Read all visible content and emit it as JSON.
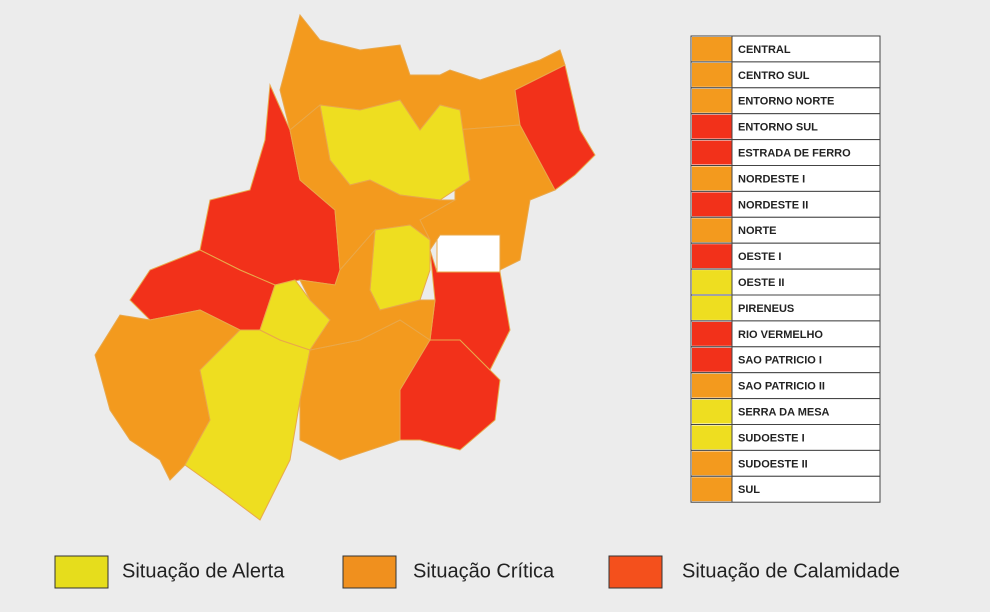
{
  "regions": [
    {
      "name": "CENTRAL",
      "color": "#f39a1e"
    },
    {
      "name": "CENTRO SUL",
      "color": "#f39a1e"
    },
    {
      "name": "ENTORNO NORTE",
      "color": "#f39a1e"
    },
    {
      "name": "ENTORNO SUL",
      "color": "#f2311a"
    },
    {
      "name": "ESTRADA DE FERRO",
      "color": "#f2311a"
    },
    {
      "name": "NORDESTE I",
      "color": "#f39a1e"
    },
    {
      "name": "NORDESTE II",
      "color": "#f2311a"
    },
    {
      "name": "NORTE",
      "color": "#f39a1e"
    },
    {
      "name": "OESTE I",
      "color": "#f2311a"
    },
    {
      "name": "OESTE II",
      "color": "#eede20"
    },
    {
      "name": "PIRENEUS",
      "color": "#eede20"
    },
    {
      "name": "RIO VERMELHO",
      "color": "#f2311a"
    },
    {
      "name": "SAO PATRICIO I",
      "color": "#f2311a"
    },
    {
      "name": "SAO PATRICIO II",
      "color": "#f39a1e"
    },
    {
      "name": "SERRA DA MESA",
      "color": "#eede20"
    },
    {
      "name": "SUDOESTE I",
      "color": "#eede20"
    },
    {
      "name": "SUDOESTE II",
      "color": "#f39a1e"
    },
    {
      "name": "SUL",
      "color": "#f39a1e"
    }
  ],
  "legend": [
    {
      "label": "Situação de Alerta",
      "color": "#e6dd1c"
    },
    {
      "label": "Situação Crítica",
      "color": "#f0901e"
    },
    {
      "label": "Situação de Calamidade",
      "color": "#f4501c"
    }
  ]
}
